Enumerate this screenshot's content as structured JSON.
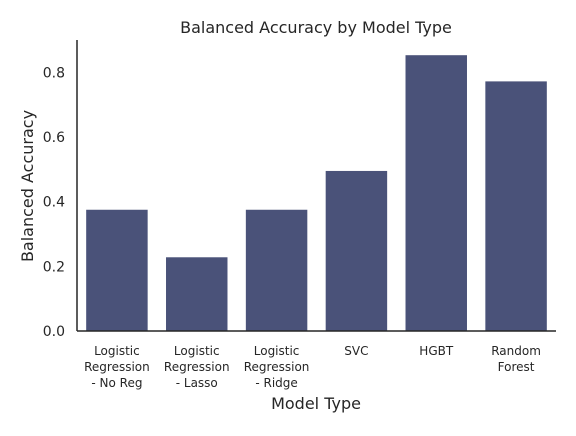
{
  "chart_data": {
    "type": "bar",
    "title": "Balanced Accuracy by Model Type",
    "xlabel": "Model Type",
    "ylabel": "Balanced Accuracy",
    "categories": [
      [
        "Logistic",
        "Regression",
        "- No Reg"
      ],
      [
        "Logistic",
        "Regression",
        "- Lasso"
      ],
      [
        "Logistic",
        "Regression",
        "- Ridge"
      ],
      [
        "SVC"
      ],
      [
        "HGBT"
      ],
      [
        "Random",
        "Forest"
      ]
    ],
    "values": [
      0.375,
      0.228,
      0.375,
      0.495,
      0.853,
      0.772
    ],
    "ylim": [
      0,
      0.9
    ],
    "yticks": [
      "0.0",
      "0.2",
      "0.4",
      "0.6",
      "0.8"
    ],
    "bar_color": "#4a5279",
    "grid": false,
    "legend": "none"
  }
}
